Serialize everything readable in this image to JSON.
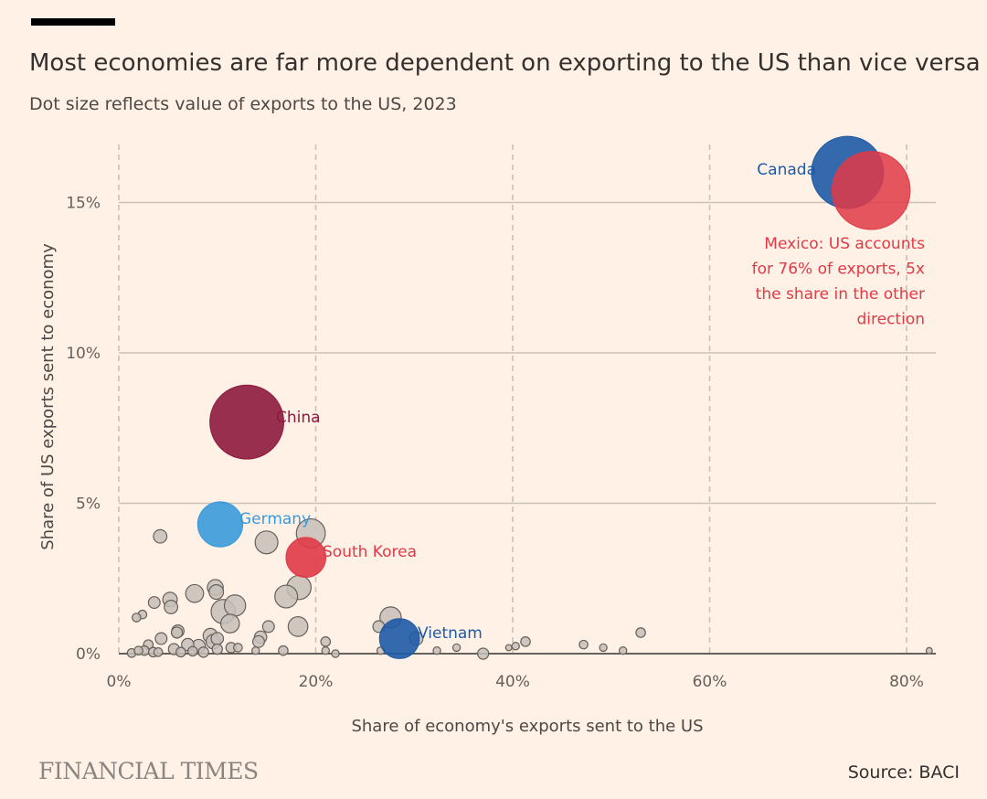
{
  "header": {
    "title": "Most economies are far more dependent on exporting to the US than vice versa",
    "subtitle": "Dot size reflects value of exports to the US, 2023"
  },
  "footer": {
    "brand": "FINANCIAL TIMES",
    "source": "Source: BACI"
  },
  "colors": {
    "background": "#FFF1E5",
    "grid": "#ccc1b7",
    "neutral_dot": "#c7bfb8",
    "canada": "#1f5aa6",
    "mexico": "#e03a47",
    "china": "#8e1a3e",
    "germany": "#3a9ad9",
    "south_korea": "#e03a47",
    "vietnam": "#1f5aa6"
  },
  "chart_data": {
    "type": "scatter",
    "title": "Most economies are far more dependent on exporting to the US than vice versa",
    "subtitle": "Dot size reflects value of exports to the US, 2023",
    "xlabel": "Share of economy's exports sent to the US",
    "ylabel": "Share of US exports sent to economy",
    "xlim": [
      0,
      83
    ],
    "ylim": [
      0,
      17
    ],
    "xticks": [
      0,
      20,
      40,
      60,
      80
    ],
    "xtick_labels": [
      "0%",
      "20%",
      "40%",
      "60%",
      "80%"
    ],
    "yticks": [
      0,
      5,
      10,
      15
    ],
    "ytick_labels": [
      "0%",
      "5%",
      "10%",
      "15%"
    ],
    "grid": "vertical dashed at x ticks, horizontal solid at y ticks",
    "size_encoding": "value of exports to the US",
    "highlighted": [
      {
        "name": "Canada",
        "x": 74,
        "y": 16.0,
        "size": 410,
        "color": "#1f5aa6",
        "label": "Canada"
      },
      {
        "name": "Mexico",
        "x": 76.4,
        "y": 15.4,
        "size": 480,
        "color": "#e03a47",
        "label": "Mexico: US accounts for 76% of exports, 5x the share in the other direction"
      },
      {
        "name": "China",
        "x": 13,
        "y": 7.7,
        "size": 430,
        "color": "#8e1a3e",
        "label": "China"
      },
      {
        "name": "Germany",
        "x": 10.3,
        "y": 4.3,
        "size": 160,
        "color": "#3a9ad9",
        "label": "Germany"
      },
      {
        "name": "South Korea",
        "x": 19,
        "y": 3.2,
        "size": 125,
        "color": "#e03a47",
        "label": "South Korea"
      },
      {
        "name": "Vietnam",
        "x": 28.5,
        "y": 0.5,
        "size": 125,
        "color": "#1f5aa6",
        "label": "Vietnam"
      }
    ],
    "mexico_annotation_lines": [
      "Mexico: US accounts",
      "for 76% of exports, 5x",
      "the share in the other",
      "direction"
    ],
    "others": [
      {
        "x": 19.5,
        "y": 4.0,
        "size": 60
      },
      {
        "x": 15,
        "y": 3.7,
        "size": 35
      },
      {
        "x": 4.2,
        "y": 3.9,
        "size": 10
      },
      {
        "x": 18.3,
        "y": 2.2,
        "size": 40
      },
      {
        "x": 17,
        "y": 1.9,
        "size": 35
      },
      {
        "x": 10.6,
        "y": 1.4,
        "size": 40
      },
      {
        "x": 11.8,
        "y": 1.6,
        "size": 30
      },
      {
        "x": 11.3,
        "y": 1.0,
        "size": 22
      },
      {
        "x": 9.8,
        "y": 2.2,
        "size": 15
      },
      {
        "x": 9.9,
        "y": 2.05,
        "size": 12
      },
      {
        "x": 7.7,
        "y": 2.0,
        "size": 20
      },
      {
        "x": 5.2,
        "y": 1.8,
        "size": 12
      },
      {
        "x": 5.3,
        "y": 1.55,
        "size": 10
      },
      {
        "x": 3.6,
        "y": 1.7,
        "size": 7
      },
      {
        "x": 2.4,
        "y": 1.3,
        "size": 3
      },
      {
        "x": 1.8,
        "y": 1.2,
        "size": 3
      },
      {
        "x": 18.2,
        "y": 0.9,
        "size": 25
      },
      {
        "x": 27.6,
        "y": 1.2,
        "size": 30
      },
      {
        "x": 26.4,
        "y": 0.9,
        "size": 7
      },
      {
        "x": 30.2,
        "y": 0.5,
        "size": 10
      },
      {
        "x": 15.2,
        "y": 0.9,
        "size": 7
      },
      {
        "x": 14.4,
        "y": 0.55,
        "size": 8
      },
      {
        "x": 14.2,
        "y": 0.4,
        "size": 7
      },
      {
        "x": 9.3,
        "y": 0.6,
        "size": 12
      },
      {
        "x": 9.6,
        "y": 0.4,
        "size": 12
      },
      {
        "x": 10.0,
        "y": 0.5,
        "size": 8
      },
      {
        "x": 8.1,
        "y": 0.25,
        "size": 10
      },
      {
        "x": 7.0,
        "y": 0.3,
        "size": 8
      },
      {
        "x": 6.0,
        "y": 0.75,
        "size": 8
      },
      {
        "x": 5.9,
        "y": 0.7,
        "size": 6
      },
      {
        "x": 4.3,
        "y": 0.5,
        "size": 7
      },
      {
        "x": 3.0,
        "y": 0.3,
        "size": 4
      },
      {
        "x": 2.6,
        "y": 0.1,
        "size": 4
      },
      {
        "x": 3.5,
        "y": 0.05,
        "size": 4
      },
      {
        "x": 1.3,
        "y": 0.02,
        "size": 3
      },
      {
        "x": 2.0,
        "y": 0.1,
        "size": 3
      },
      {
        "x": 4.0,
        "y": 0.05,
        "size": 3
      },
      {
        "x": 5.6,
        "y": 0.15,
        "size": 6
      },
      {
        "x": 6.3,
        "y": 0.05,
        "size": 4
      },
      {
        "x": 7.5,
        "y": 0.08,
        "size": 4
      },
      {
        "x": 8.6,
        "y": 0.05,
        "size": 5
      },
      {
        "x": 10.0,
        "y": 0.15,
        "size": 5
      },
      {
        "x": 11.4,
        "y": 0.2,
        "size": 5
      },
      {
        "x": 12.1,
        "y": 0.2,
        "size": 3
      },
      {
        "x": 13.9,
        "y": 0.1,
        "size": 2
      },
      {
        "x": 16.7,
        "y": 0.1,
        "size": 4
      },
      {
        "x": 21.0,
        "y": 0.4,
        "size": 4
      },
      {
        "x": 21.0,
        "y": 0.1,
        "size": 2
      },
      {
        "x": 22.0,
        "y": 0.0,
        "size": 2
      },
      {
        "x": 26.6,
        "y": 0.1,
        "size": 2
      },
      {
        "x": 32.3,
        "y": 0.1,
        "size": 2
      },
      {
        "x": 34.3,
        "y": 0.2,
        "size": 2
      },
      {
        "x": 37.0,
        "y": 0.0,
        "size": 6
      },
      {
        "x": 39.6,
        "y": 0.2,
        "size": 1
      },
      {
        "x": 40.3,
        "y": 0.25,
        "size": 2
      },
      {
        "x": 41.3,
        "y": 0.4,
        "size": 4
      },
      {
        "x": 47.2,
        "y": 0.3,
        "size": 3
      },
      {
        "x": 49.2,
        "y": 0.2,
        "size": 2
      },
      {
        "x": 51.2,
        "y": 0.1,
        "size": 2
      },
      {
        "x": 53.0,
        "y": 0.7,
        "size": 4
      },
      {
        "x": 82.3,
        "y": 0.1,
        "size": 1
      }
    ]
  }
}
